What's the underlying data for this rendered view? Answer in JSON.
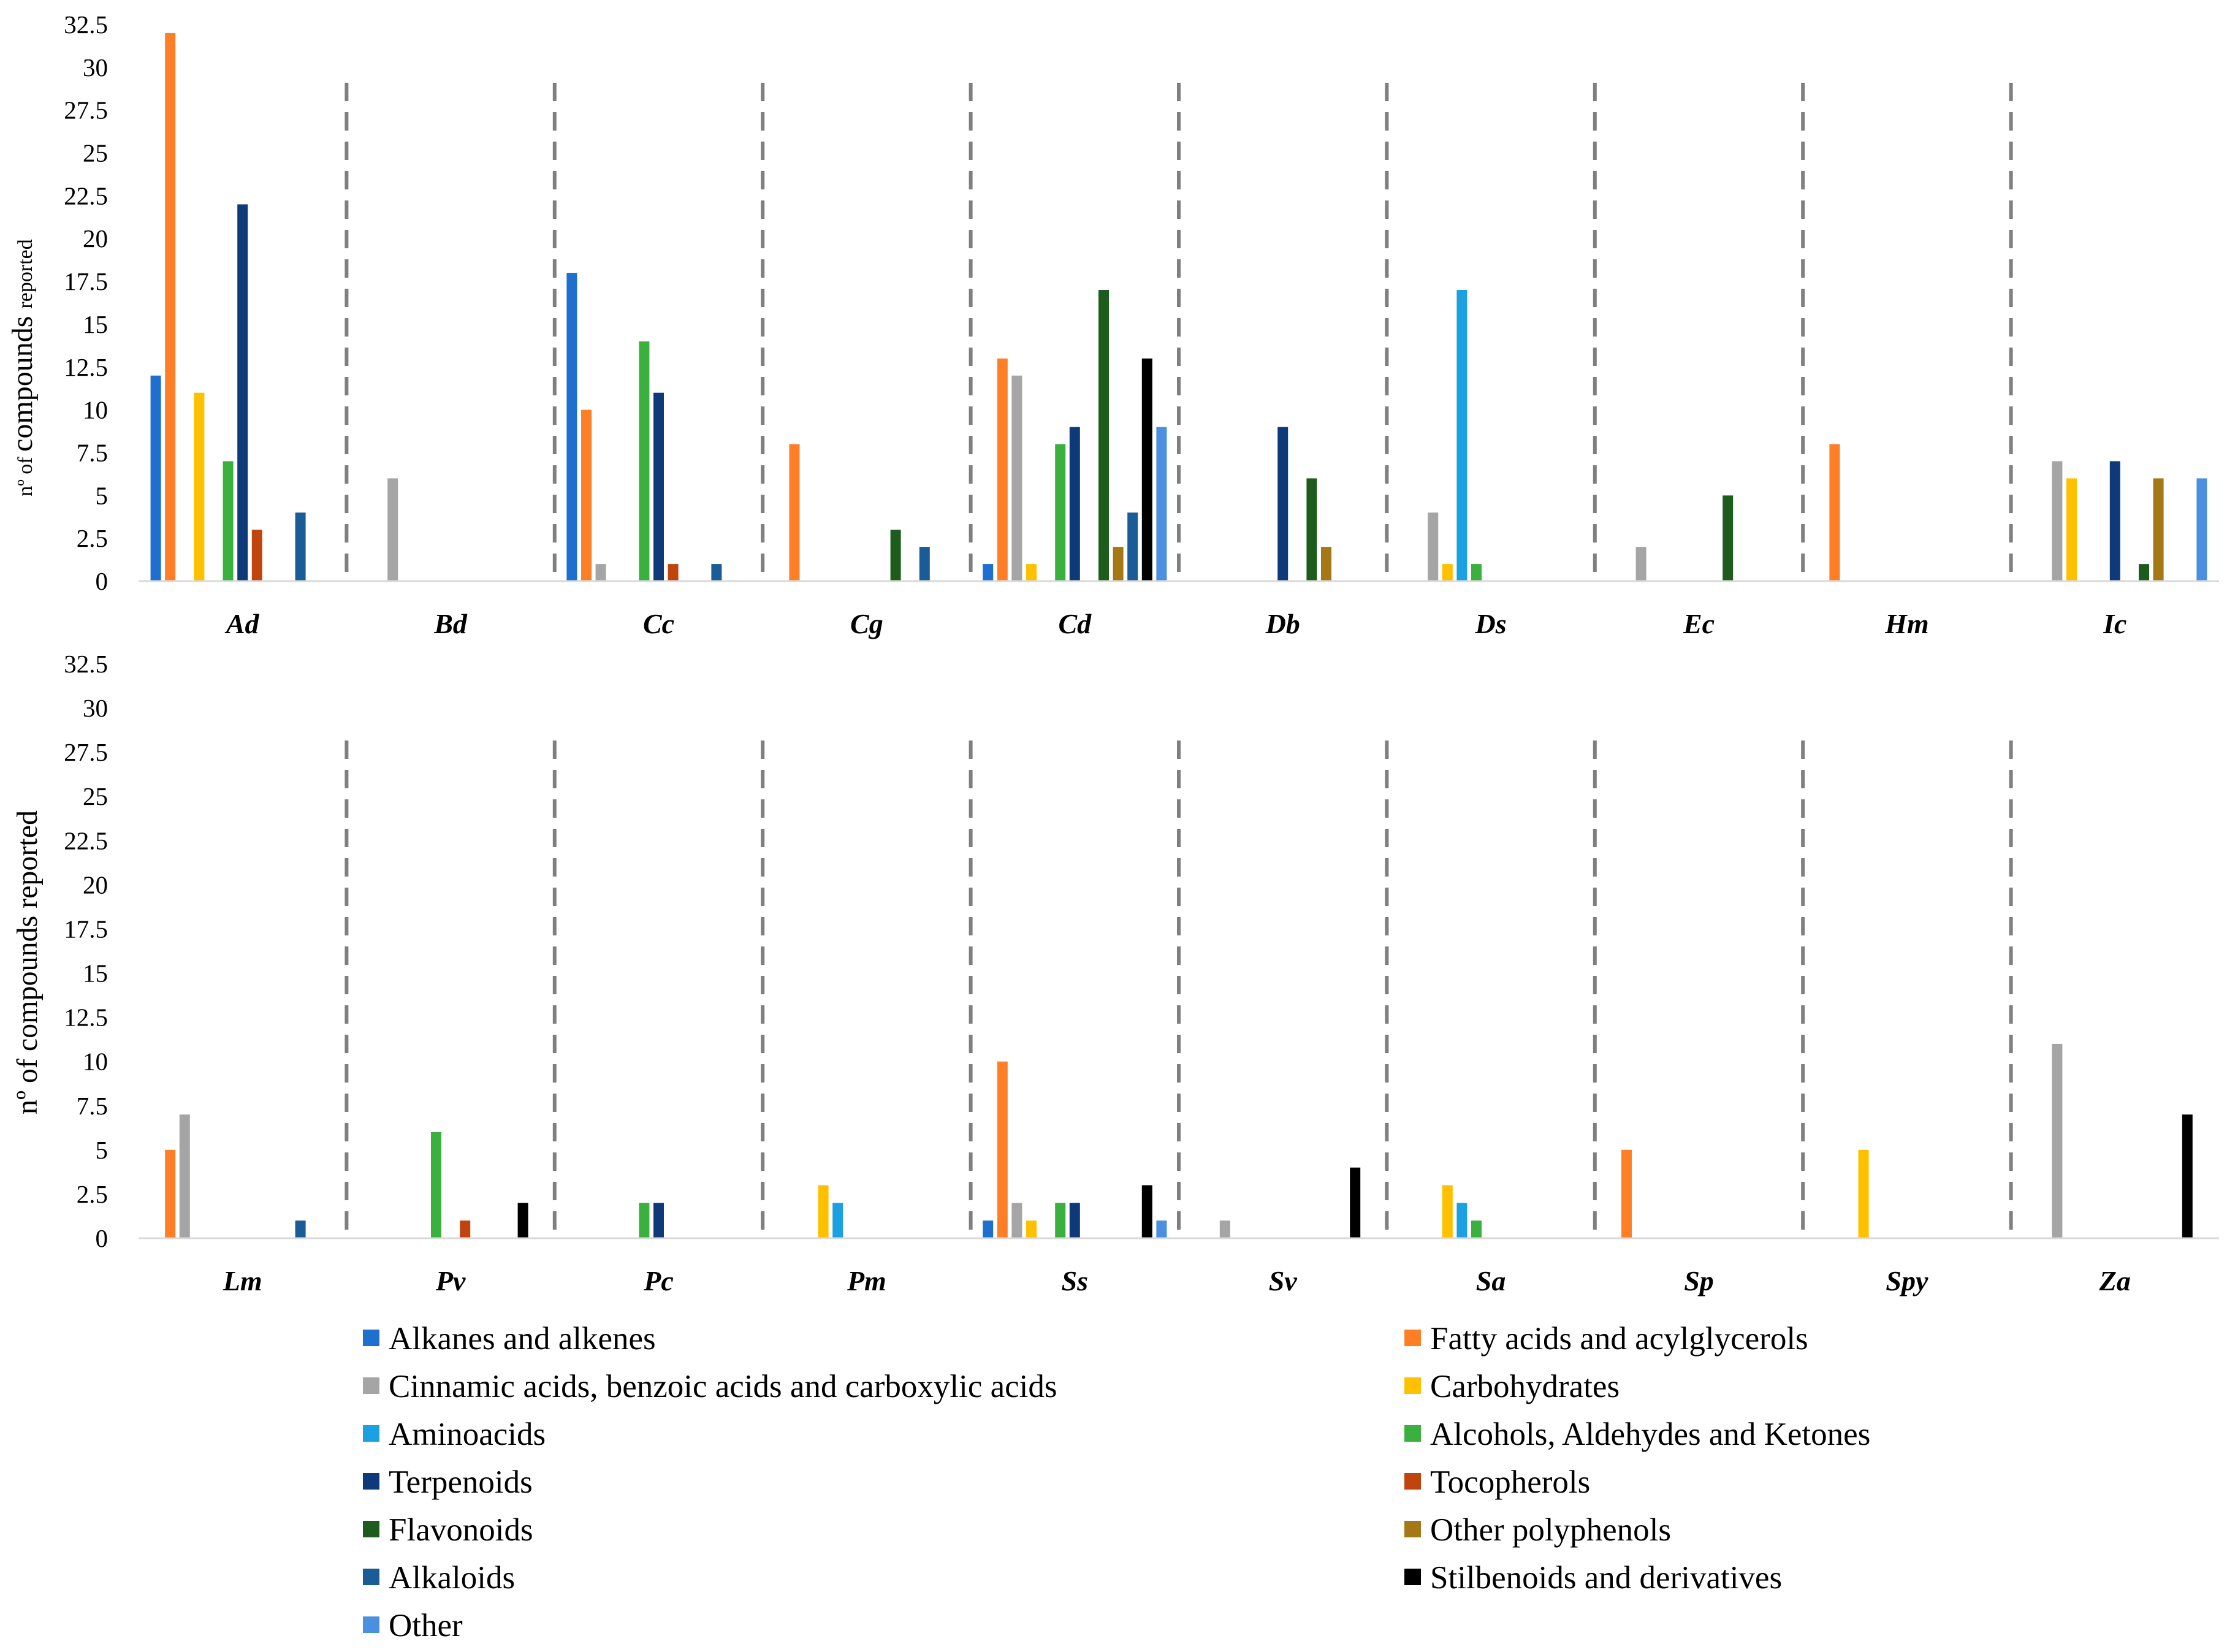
{
  "chart_data": {
    "type": "bar",
    "ylim": [
      0,
      32.5
    ],
    "yticks": [
      "0",
      "2.5",
      "5",
      "7.5",
      "10",
      "12.5",
      "15",
      "17.5",
      "20",
      "22.5",
      "25",
      "27.5",
      "30",
      "32.5"
    ],
    "series": [
      {
        "key": "alk",
        "name": "Alkanes and alkenes",
        "color": "#1f6fcf"
      },
      {
        "key": "fat",
        "name": "Fatty acids and acylglycerols",
        "color": "#ff7f27"
      },
      {
        "key": "cin",
        "name": "Cinnamic acids, benzoic acids and carboxylic acids",
        "color": "#a5a5a5"
      },
      {
        "key": "car",
        "name": "Carbohydrates",
        "color": "#ffc000"
      },
      {
        "key": "ami",
        "name": "Aminoacids",
        "color": "#1ba1e2"
      },
      {
        "key": "alc",
        "name": "Alcohols, Aldehydes and Ketones",
        "color": "#3ab03e"
      },
      {
        "key": "ter",
        "name": "Terpenoids",
        "color": "#0e3a7a"
      },
      {
        "key": "toc",
        "name": "Tocopherols",
        "color": "#c0440e"
      },
      {
        "key": "fla",
        "name": "Flavonoids",
        "color": "#1e5c1e"
      },
      {
        "key": "oth",
        "name": "Other polyphenols",
        "color": "#a57816"
      },
      {
        "key": "akl",
        "name": "Alkaloids",
        "color": "#1a5c96"
      },
      {
        "key": "sti",
        "name": "Stilbenoids and derivatives",
        "color": "#000000"
      },
      {
        "key": "other",
        "name": "Other",
        "color": "#4a8fe0"
      }
    ],
    "panels": [
      {
        "ylabel_prefix": "nº of compounds",
        "ylabel_suffix": "reported",
        "categories": [
          "Ad",
          "Bd",
          "Cc",
          "Cg",
          "Cd",
          "Db",
          "Ds",
          "Ec",
          "Hm",
          "Ic"
        ],
        "values": {
          "alk": [
            12,
            0,
            18,
            0,
            1,
            0,
            0,
            0,
            0,
            0
          ],
          "fat": [
            32,
            0,
            10,
            8,
            13,
            0,
            0,
            0,
            8,
            0
          ],
          "cin": [
            0,
            6,
            1,
            0,
            12,
            0,
            4,
            2,
            0,
            7
          ],
          "car": [
            11,
            0,
            0,
            0,
            1,
            0,
            1,
            0,
            0,
            6
          ],
          "ami": [
            0,
            0,
            0,
            0,
            0,
            0,
            17,
            0,
            0,
            0
          ],
          "alc": [
            7,
            0,
            14,
            0,
            8,
            0,
            1,
            0,
            0,
            0
          ],
          "ter": [
            22,
            0,
            11,
            0,
            9,
            9,
            0,
            0,
            0,
            7
          ],
          "toc": [
            3,
            0,
            1,
            0,
            0,
            0,
            0,
            0,
            0,
            0
          ],
          "fla": [
            0,
            0,
            0,
            3,
            17,
            6,
            0,
            5,
            0,
            1
          ],
          "oth": [
            0,
            0,
            0,
            0,
            2,
            2,
            0,
            0,
            0,
            6
          ],
          "akl": [
            4,
            0,
            1,
            2,
            4,
            0,
            0,
            0,
            0,
            0
          ],
          "sti": [
            0,
            0,
            0,
            0,
            13,
            0,
            0,
            0,
            0,
            0
          ],
          "other": [
            0,
            0,
            0,
            0,
            9,
            0,
            0,
            0,
            0,
            6
          ]
        }
      },
      {
        "ylabel": "nº of compounds reported",
        "categories": [
          "Lm",
          "Pv",
          "Pc",
          "Pm",
          "Ss",
          "Sv",
          "Sa",
          "Sp",
          "Spy",
          "Za"
        ],
        "values": {
          "alk": [
            0,
            0,
            0,
            0,
            1,
            0,
            0,
            0,
            0,
            0
          ],
          "fat": [
            5,
            0,
            0,
            0,
            10,
            0,
            0,
            5,
            0,
            0
          ],
          "cin": [
            7,
            0,
            0,
            0,
            2,
            1,
            0,
            0,
            0,
            11
          ],
          "car": [
            0,
            0,
            0,
            3,
            1,
            0,
            3,
            0,
            5,
            0
          ],
          "ami": [
            0,
            0,
            0,
            2,
            0,
            0,
            2,
            0,
            0,
            0
          ],
          "alc": [
            0,
            6,
            2,
            0,
            2,
            0,
            1,
            0,
            0,
            0
          ],
          "ter": [
            0,
            0,
            2,
            0,
            2,
            0,
            0,
            0,
            0,
            0
          ],
          "toc": [
            0,
            1,
            0,
            0,
            0,
            0,
            0,
            0,
            0,
            0
          ],
          "fla": [
            0,
            0,
            0,
            0,
            0,
            0,
            0,
            0,
            0,
            0
          ],
          "oth": [
            0,
            0,
            0,
            0,
            0,
            0,
            0,
            0,
            0,
            0
          ],
          "akl": [
            1,
            0,
            0,
            0,
            0,
            0,
            0,
            0,
            0,
            0
          ],
          "sti": [
            0,
            2,
            0,
            0,
            3,
            4,
            0,
            0,
            0,
            7
          ],
          "other": [
            0,
            0,
            0,
            0,
            1,
            0,
            0,
            0,
            0,
            0
          ]
        }
      }
    ]
  }
}
